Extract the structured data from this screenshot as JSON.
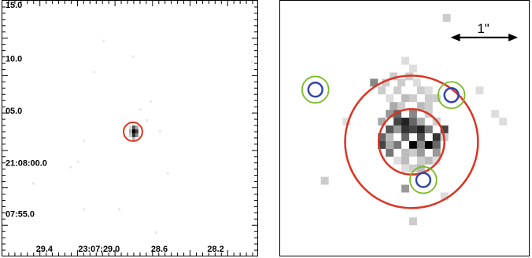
{
  "left_panel": {
    "y_ticks": [
      "15.0",
      "10.0",
      "05.0",
      "21:08:00.0",
      "07:55.0"
    ],
    "x_ticks": [
      "29.4",
      "23:07;29.0",
      "28.6",
      "28.2"
    ],
    "colors": {
      "frame": "#000000",
      "source_circle": "#e03020"
    }
  },
  "right_panel": {
    "scale_bar_label": "1\"",
    "colors": {
      "outer_circle": "#dd3322",
      "inner_circle": "#dd3322",
      "green_circles": "#77bb22",
      "blue_circles": "#3344aa"
    }
  }
}
